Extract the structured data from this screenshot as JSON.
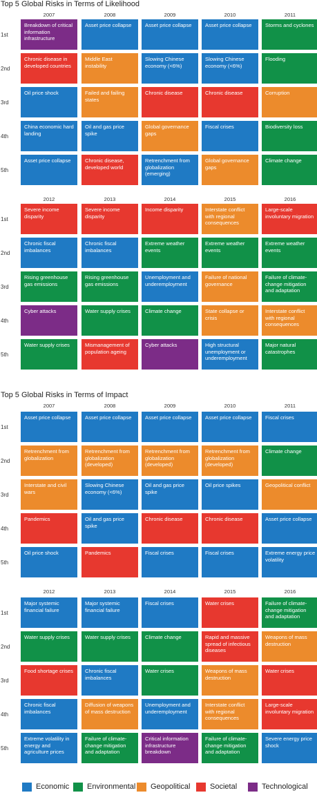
{
  "colors": {
    "Economic": "#1f7ac4",
    "Environmental": "#119148",
    "Geopolitical": "#ec8b2c",
    "Societal": "#e7382f",
    "Technological": "#7c2c87"
  },
  "chart_data": [
    {
      "type": "table",
      "title": "Top 5 Global Risks in Terms of Likelihood",
      "ranks": [
        "1st",
        "2nd",
        "3rd",
        "4th",
        "5th"
      ],
      "blocks": [
        {
          "years": [
            "2007",
            "2008",
            "2009",
            "2010",
            "2011"
          ],
          "columns": [
            [
              {
                "text": "Breakdown of critical information infrastructure",
                "category": "Technological"
              },
              {
                "text": "Chronic disease in developed countries",
                "category": "Societal"
              },
              {
                "text": "Oil price shock",
                "category": "Economic"
              },
              {
                "text": "China economic hard landing",
                "category": "Economic"
              },
              {
                "text": "Asset price collapse",
                "category": "Economic"
              }
            ],
            [
              {
                "text": "Asset price collapse",
                "category": "Economic"
              },
              {
                "text": "Middle East instability",
                "category": "Geopolitical"
              },
              {
                "text": "Failed and failing states",
                "category": "Geopolitical"
              },
              {
                "text": "Oil and gas price spike",
                "category": "Economic"
              },
              {
                "text": "Chronic disease, developed world",
                "category": "Societal"
              }
            ],
            [
              {
                "text": "Asset price collapse",
                "category": "Economic"
              },
              {
                "text": "Slowing Chinese economy (<6%)",
                "category": "Economic"
              },
              {
                "text": "Chronic disease",
                "category": "Societal"
              },
              {
                "text": "Global governance gaps",
                "category": "Geopolitical"
              },
              {
                "text": "Retrenchment from globalization (emerging)",
                "category": "Economic"
              }
            ],
            [
              {
                "text": "Asset price collapse",
                "category": "Economic"
              },
              {
                "text": "Slowing Chinese economy (<6%)",
                "category": "Economic"
              },
              {
                "text": "Chronic disease",
                "category": "Societal"
              },
              {
                "text": "Fiscal crises",
                "category": "Economic"
              },
              {
                "text": "Global governance gaps",
                "category": "Geopolitical"
              }
            ],
            [
              {
                "text": "Storms and cyclones",
                "category": "Environmental"
              },
              {
                "text": "Flooding",
                "category": "Environmental"
              },
              {
                "text": "Corruption",
                "category": "Geopolitical"
              },
              {
                "text": "Biodiversity loss",
                "category": "Environmental"
              },
              {
                "text": "Climate change",
                "category": "Environmental"
              }
            ]
          ]
        },
        {
          "years": [
            "2012",
            "2013",
            "2014",
            "2015",
            "2016"
          ],
          "columns": [
            [
              {
                "text": "Severe income disparity",
                "category": "Societal"
              },
              {
                "text": "Chronic fiscal imbalances",
                "category": "Economic"
              },
              {
                "text": "Rising greenhouse gas emissions",
                "category": "Environmental"
              },
              {
                "text": "Cyber attacks",
                "category": "Technological"
              },
              {
                "text": "Water supply crises",
                "category": "Environmental"
              }
            ],
            [
              {
                "text": "Severe income disparity",
                "category": "Societal"
              },
              {
                "text": "Chronic fiscal imbalances",
                "category": "Economic"
              },
              {
                "text": "Rising greenhouse gas emissions",
                "category": "Environmental"
              },
              {
                "text": "Water supply crises",
                "category": "Environmental"
              },
              {
                "text": "Mismanagement of population ageing",
                "category": "Societal"
              }
            ],
            [
              {
                "text": "Income disparity",
                "category": "Societal"
              },
              {
                "text": "Extreme weather events",
                "category": "Environmental"
              },
              {
                "text": "Unemployment and underemployment",
                "category": "Economic"
              },
              {
                "text": "Climate change",
                "category": "Environmental"
              },
              {
                "text": "Cyber attacks",
                "category": "Technological"
              }
            ],
            [
              {
                "text": "Interstate conflict with regional consequences",
                "category": "Geopolitical"
              },
              {
                "text": "Extreme weather events",
                "category": "Environmental"
              },
              {
                "text": "Failure of national governance",
                "category": "Geopolitical"
              },
              {
                "text": "State collapse or crisis",
                "category": "Geopolitical"
              },
              {
                "text": "High structural unemployment or underemployment",
                "category": "Economic"
              }
            ],
            [
              {
                "text": "Large-scale involuntary migration",
                "category": "Societal"
              },
              {
                "text": "Extreme weather events",
                "category": "Environmental"
              },
              {
                "text": "Failure of climate-change mitigation and adaptation",
                "category": "Environmental"
              },
              {
                "text": "Interstate conflict with regional consequences",
                "category": "Geopolitical"
              },
              {
                "text": "Major natural catastrophes",
                "category": "Environmental"
              }
            ]
          ]
        }
      ]
    },
    {
      "type": "table",
      "title": "Top 5 Global Risks in Terms of Impact",
      "ranks": [
        "1st",
        "2nd",
        "3rd",
        "4th",
        "5th"
      ],
      "blocks": [
        {
          "years": [
            "2007",
            "2008",
            "2009",
            "2010",
            "2011"
          ],
          "columns": [
            [
              {
                "text": "Asset price collapse",
                "category": "Economic"
              },
              {
                "text": "Retrenchment from globalization",
                "category": "Geopolitical"
              },
              {
                "text": "Interstate and civil wars",
                "category": "Geopolitical"
              },
              {
                "text": "Pandemics",
                "category": "Societal"
              },
              {
                "text": "Oil price shock",
                "category": "Economic"
              }
            ],
            [
              {
                "text": "Asset price collapse",
                "category": "Economic"
              },
              {
                "text": "Retrenchment from globalization (developed)",
                "category": "Geopolitical"
              },
              {
                "text": "Slowing Chinese economy (<6%)",
                "category": "Economic"
              },
              {
                "text": "Oil and gas price spike",
                "category": "Economic"
              },
              {
                "text": "Pandemics",
                "category": "Societal"
              }
            ],
            [
              {
                "text": "Asset price collapse",
                "category": "Economic"
              },
              {
                "text": "Retrenchment from globalization (developed)",
                "category": "Geopolitical"
              },
              {
                "text": "Oil and gas price spike",
                "category": "Economic"
              },
              {
                "text": "Chronic disease",
                "category": "Societal"
              },
              {
                "text": "Fiscal crises",
                "category": "Economic"
              }
            ],
            [
              {
                "text": "Asset price collapse",
                "category": "Economic"
              },
              {
                "text": "Retrenchment from globalization (developed)",
                "category": "Geopolitical"
              },
              {
                "text": "Oil price spikes",
                "category": "Economic"
              },
              {
                "text": "Chronic disease",
                "category": "Societal"
              },
              {
                "text": "Fiscal crises",
                "category": "Economic"
              }
            ],
            [
              {
                "text": "Fiscal crises",
                "category": "Economic"
              },
              {
                "text": "Climate change",
                "category": "Environmental"
              },
              {
                "text": "Geopolitical conflict",
                "category": "Geopolitical"
              },
              {
                "text": "Asset price collapse",
                "category": "Economic"
              },
              {
                "text": "Extreme energy price volatility",
                "category": "Economic"
              }
            ]
          ]
        },
        {
          "years": [
            "2012",
            "2013",
            "2014",
            "2015",
            "2016"
          ],
          "columns": [
            [
              {
                "text": "Major systemic financial failure",
                "category": "Economic"
              },
              {
                "text": "Water supply crises",
                "category": "Environmental"
              },
              {
                "text": "Food shortage crises",
                "category": "Societal"
              },
              {
                "text": "Chronic fiscal imbalances",
                "category": "Economic"
              },
              {
                "text": "Extreme volatility in energy and agriculture prices",
                "category": "Economic"
              }
            ],
            [
              {
                "text": "Major systemic financial failure",
                "category": "Economic"
              },
              {
                "text": "Water supply crises",
                "category": "Environmental"
              },
              {
                "text": "Chronic fiscal imbalances",
                "category": "Economic"
              },
              {
                "text": "Diffusion of weapons of mass destruction",
                "category": "Geopolitical"
              },
              {
                "text": "Failure of climate-change mitigation and adaptation",
                "category": "Environmental"
              }
            ],
            [
              {
                "text": "Fiscal crises",
                "category": "Economic"
              },
              {
                "text": "Climate change",
                "category": "Environmental"
              },
              {
                "text": "Water crises",
                "category": "Environmental"
              },
              {
                "text": "Unemployment and underemployment",
                "category": "Economic"
              },
              {
                "text": "Critical information infrastructure breakdown",
                "category": "Technological"
              }
            ],
            [
              {
                "text": "Water crises",
                "category": "Societal"
              },
              {
                "text": "Rapid and massive spread of infectious diseases",
                "category": "Societal"
              },
              {
                "text": "Weapons of mass destruction",
                "category": "Geopolitical"
              },
              {
                "text": "Interstate conflict with regional consequences",
                "category": "Geopolitical"
              },
              {
                "text": "Failure of climate-change mitigation and adaptation",
                "category": "Environmental"
              }
            ],
            [
              {
                "text": "Failure of climate-change mitigation and adaptation",
                "category": "Environmental"
              },
              {
                "text": "Weapons of mass destruction",
                "category": "Geopolitical"
              },
              {
                "text": "Water crises",
                "category": "Societal"
              },
              {
                "text": "Large-scale involuntary migration",
                "category": "Societal"
              },
              {
                "text": "Severe energy price shock",
                "category": "Economic"
              }
            ]
          ]
        }
      ]
    }
  ],
  "legend": [
    {
      "label": "Economic",
      "category": "Economic"
    },
    {
      "label": "Environmental",
      "category": "Environmental"
    },
    {
      "label": "Geopolitical",
      "category": "Geopolitical"
    },
    {
      "label": "Societal",
      "category": "Societal"
    },
    {
      "label": "Technological",
      "category": "Technological"
    }
  ]
}
